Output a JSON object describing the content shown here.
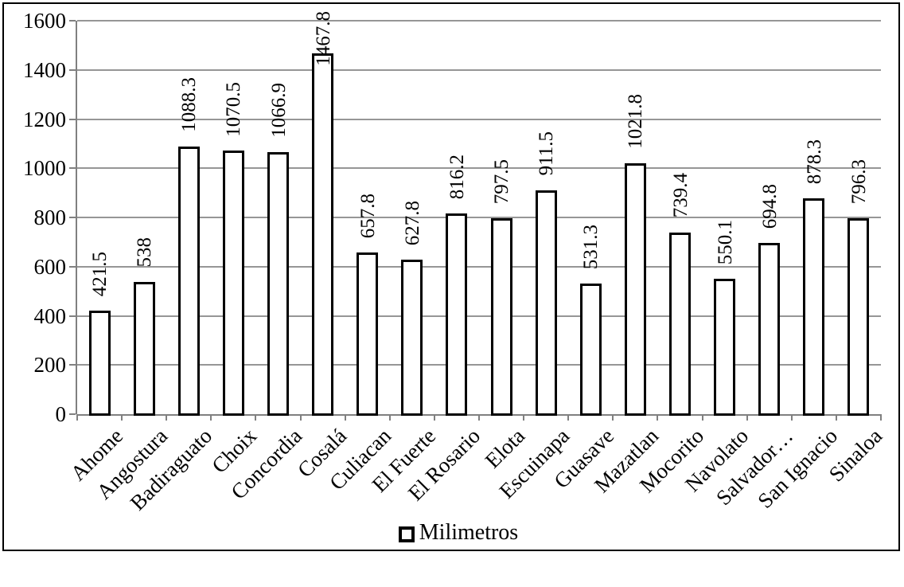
{
  "chart_data": {
    "type": "bar",
    "title": "",
    "xlabel": "",
    "ylabel": "",
    "series_name": "Milimetros",
    "categories": [
      "Ahome",
      "Angostura",
      "Badiraguato",
      "Choix",
      "Concordia",
      "Cosalá",
      "Culiacan",
      "El Fuerte",
      "El Rosario",
      "Elota",
      "Escuinapa",
      "Guasave",
      "Mazatlan",
      "Mocorito",
      "Navolato",
      "Salvador…",
      "San Ignacio",
      "Sinaloa"
    ],
    "values": [
      421.5,
      538,
      1088.3,
      1070.5,
      1066.9,
      1467.8,
      657.8,
      627.8,
      816.2,
      797.5,
      911.5,
      531.3,
      1021.8,
      739.4,
      550.1,
      694.8,
      878.3,
      796.3
    ],
    "data_labels": [
      "421.5",
      "538",
      "1088.3",
      "1070.5",
      "1066.9",
      "1467.8",
      "657.8",
      "627.8",
      "816.2",
      "797.5",
      "911.5",
      "531.3",
      "1021.8",
      "739.4",
      "550.1",
      "694.8",
      "878.3",
      "796.3"
    ],
    "ylim": [
      0,
      1600
    ],
    "ytick_step": 200,
    "yticks": [
      "0",
      "200",
      "400",
      "600",
      "800",
      "1000",
      "1200",
      "1400",
      "1600"
    ],
    "grid": true,
    "legend_position": "bottom",
    "colors": {
      "bar_fill": "#ffffff",
      "bar_border": "#000000",
      "gridline": "#969696",
      "axis": "#808080",
      "text": "#000000",
      "figure_border": "#000000",
      "background": "#ffffff"
    }
  }
}
